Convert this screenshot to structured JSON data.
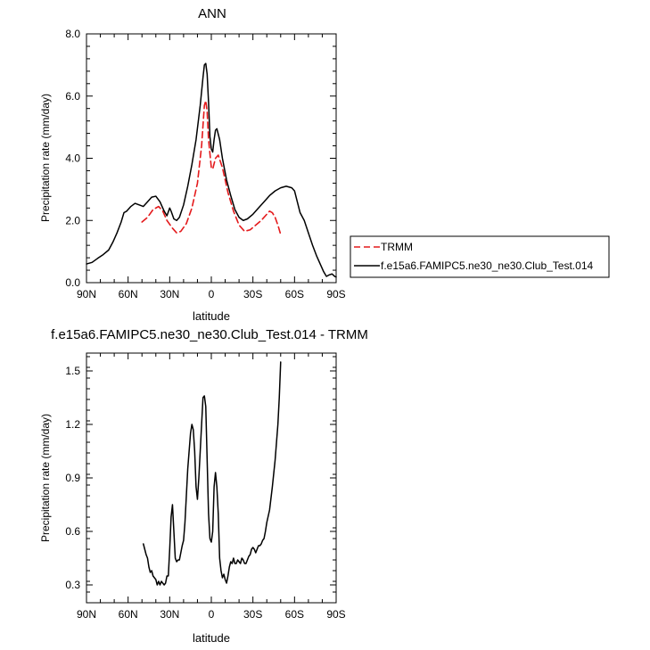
{
  "chart_data": [
    {
      "type": "line",
      "title": "ANN",
      "xlabel": "latitude",
      "ylabel": "Precipitation rate (mm/day)",
      "xlim": [
        -90,
        90
      ],
      "ylim": [
        0,
        8
      ],
      "x_direction": "north-to-south",
      "xticks": [
        -90,
        -60,
        -30,
        0,
        30,
        60,
        90
      ],
      "xtick_labels": [
        "90N",
        "60N",
        "30N",
        "0",
        "30S",
        "60S",
        "90S"
      ],
      "yticks": [
        0,
        2,
        4,
        6,
        8
      ],
      "ytick_labels": [
        "0.0",
        "2.0",
        "4.0",
        "6.0",
        "8.0"
      ],
      "grid": false,
      "legend_position": "right, outside plot",
      "series": [
        {
          "name": "TRMM",
          "color": "#e41a1c",
          "dash": "dashed",
          "points": [
            [
              -50,
              1.95
            ],
            [
              -46,
              2.1
            ],
            [
              -42,
              2.35
            ],
            [
              -38,
              2.45
            ],
            [
              -35,
              2.3
            ],
            [
              -32,
              2.0
            ],
            [
              -28,
              1.75
            ],
            [
              -25,
              1.6
            ],
            [
              -22,
              1.65
            ],
            [
              -18,
              1.9
            ],
            [
              -14,
              2.4
            ],
            [
              -10,
              3.2
            ],
            [
              -7,
              4.4
            ],
            [
              -5,
              5.7
            ],
            [
              -4,
              5.85
            ],
            [
              -3,
              5.5
            ],
            [
              -2,
              4.6
            ],
            [
              0,
              3.7
            ],
            [
              1,
              3.65
            ],
            [
              3,
              4.0
            ],
            [
              5,
              4.1
            ],
            [
              8,
              3.7
            ],
            [
              12,
              2.9
            ],
            [
              16,
              2.3
            ],
            [
              20,
              1.85
            ],
            [
              24,
              1.65
            ],
            [
              28,
              1.7
            ],
            [
              32,
              1.85
            ],
            [
              36,
              2.0
            ],
            [
              40,
              2.2
            ],
            [
              42,
              2.3
            ],
            [
              44,
              2.25
            ],
            [
              46,
              2.1
            ],
            [
              48,
              1.85
            ],
            [
              50,
              1.55
            ]
          ]
        },
        {
          "name": "f.e15a6.FAMIPC5.ne30_ne30.Club_Test.014",
          "color": "#000000",
          "dash": "solid",
          "points": [
            [
              -90,
              0.6
            ],
            [
              -86,
              0.65
            ],
            [
              -82,
              0.78
            ],
            [
              -78,
              0.9
            ],
            [
              -74,
              1.05
            ],
            [
              -71,
              1.3
            ],
            [
              -68,
              1.6
            ],
            [
              -65,
              1.95
            ],
            [
              -63,
              2.25
            ],
            [
              -61,
              2.3
            ],
            [
              -58,
              2.45
            ],
            [
              -55,
              2.55
            ],
            [
              -52,
              2.5
            ],
            [
              -49,
              2.45
            ],
            [
              -46,
              2.6
            ],
            [
              -43,
              2.75
            ],
            [
              -40,
              2.78
            ],
            [
              -37,
              2.6
            ],
            [
              -34,
              2.3
            ],
            [
              -32,
              2.15
            ],
            [
              -30,
              2.4
            ],
            [
              -29,
              2.3
            ],
            [
              -27,
              2.05
            ],
            [
              -25,
              2.0
            ],
            [
              -23,
              2.1
            ],
            [
              -20,
              2.5
            ],
            [
              -17,
              3.1
            ],
            [
              -14,
              3.8
            ],
            [
              -11,
              4.6
            ],
            [
              -8,
              5.7
            ],
            [
              -6,
              6.6
            ],
            [
              -5,
              7.0
            ],
            [
              -4,
              7.05
            ],
            [
              -3,
              6.7
            ],
            [
              -2,
              5.8
            ],
            [
              -1,
              4.7
            ],
            [
              0,
              4.3
            ],
            [
              1,
              4.2
            ],
            [
              2,
              4.6
            ],
            [
              3,
              4.9
            ],
            [
              4,
              4.95
            ],
            [
              6,
              4.6
            ],
            [
              8,
              4.0
            ],
            [
              11,
              3.3
            ],
            [
              14,
              2.8
            ],
            [
              17,
              2.35
            ],
            [
              20,
              2.1
            ],
            [
              23,
              2.0
            ],
            [
              26,
              2.05
            ],
            [
              30,
              2.2
            ],
            [
              34,
              2.4
            ],
            [
              38,
              2.6
            ],
            [
              42,
              2.8
            ],
            [
              46,
              2.95
            ],
            [
              50,
              3.05
            ],
            [
              54,
              3.1
            ],
            [
              58,
              3.05
            ],
            [
              60,
              2.95
            ],
            [
              62,
              2.6
            ],
            [
              64,
              2.25
            ],
            [
              67,
              2.0
            ],
            [
              70,
              1.6
            ],
            [
              73,
              1.2
            ],
            [
              76,
              0.85
            ],
            [
              79,
              0.55
            ],
            [
              81,
              0.35
            ],
            [
              83,
              0.2
            ],
            [
              85,
              0.25
            ],
            [
              87,
              0.28
            ],
            [
              89,
              0.2
            ],
            [
              90,
              0.18
            ]
          ]
        }
      ]
    },
    {
      "type": "line",
      "title": "f.e15a6.FAMIPC5.ne30_ne30.Club_Test.014 - TRMM",
      "xlabel": "latitude",
      "ylabel": "Precipitation rate (mm/day)",
      "xlim": [
        -90,
        90
      ],
      "ylim": [
        0.2,
        1.6
      ],
      "x_direction": "north-to-south",
      "xticks": [
        -90,
        -60,
        -30,
        0,
        30,
        60,
        90
      ],
      "xtick_labels": [
        "90N",
        "60N",
        "30N",
        "0",
        "30S",
        "60S",
        "90S"
      ],
      "yticks": [
        0.3,
        0.6,
        0.9,
        1.2,
        1.5
      ],
      "ytick_labels": [
        "0.3",
        "0.6",
        "0.9",
        "1.2",
        "1.5"
      ],
      "grid": false,
      "series": [
        {
          "name": "",
          "color": "#000000",
          "dash": "solid",
          "points": [
            [
              -49,
              0.53
            ],
            [
              -48,
              0.5
            ],
            [
              -47,
              0.47
            ],
            [
              -46,
              0.45
            ],
            [
              -45,
              0.4
            ],
            [
              -44,
              0.37
            ],
            [
              -43,
              0.38
            ],
            [
              -42,
              0.35
            ],
            [
              -41,
              0.34
            ],
            [
              -40,
              0.33
            ],
            [
              -39,
              0.3
            ],
            [
              -38,
              0.32
            ],
            [
              -37,
              0.3
            ],
            [
              -36,
              0.32
            ],
            [
              -35,
              0.31
            ],
            [
              -34,
              0.3
            ],
            [
              -33,
              0.31
            ],
            [
              -32,
              0.35
            ],
            [
              -31,
              0.35
            ],
            [
              -30,
              0.5
            ],
            [
              -29,
              0.68
            ],
            [
              -28,
              0.75
            ],
            [
              -27,
              0.6
            ],
            [
              -26,
              0.45
            ],
            [
              -25,
              0.43
            ],
            [
              -24,
              0.44
            ],
            [
              -23,
              0.44
            ],
            [
              -22,
              0.48
            ],
            [
              -21,
              0.52
            ],
            [
              -20,
              0.55
            ],
            [
              -19,
              0.65
            ],
            [
              -18,
              0.8
            ],
            [
              -17,
              0.95
            ],
            [
              -16,
              1.05
            ],
            [
              -15,
              1.15
            ],
            [
              -14,
              1.2
            ],
            [
              -13,
              1.17
            ],
            [
              -12,
              1.05
            ],
            [
              -11,
              0.85
            ],
            [
              -10,
              0.78
            ],
            [
              -9,
              0.9
            ],
            [
              -8,
              1.05
            ],
            [
              -7,
              1.2
            ],
            [
              -6,
              1.35
            ],
            [
              -5,
              1.36
            ],
            [
              -4,
              1.3
            ],
            [
              -3,
              1.0
            ],
            [
              -2,
              0.7
            ],
            [
              -1,
              0.56
            ],
            [
              0,
              0.54
            ],
            [
              1,
              0.6
            ],
            [
              2,
              0.85
            ],
            [
              3,
              0.93
            ],
            [
              4,
              0.85
            ],
            [
              5,
              0.7
            ],
            [
              6,
              0.45
            ],
            [
              7,
              0.38
            ],
            [
              8,
              0.34
            ],
            [
              9,
              0.36
            ],
            [
              10,
              0.33
            ],
            [
              11,
              0.31
            ],
            [
              12,
              0.35
            ],
            [
              13,
              0.4
            ],
            [
              14,
              0.43
            ],
            [
              15,
              0.42
            ],
            [
              16,
              0.45
            ],
            [
              17,
              0.42
            ],
            [
              18,
              0.42
            ],
            [
              19,
              0.44
            ],
            [
              20,
              0.43
            ],
            [
              21,
              0.42
            ],
            [
              22,
              0.45
            ],
            [
              23,
              0.44
            ],
            [
              24,
              0.42
            ],
            [
              25,
              0.42
            ],
            [
              26,
              0.44
            ],
            [
              27,
              0.46
            ],
            [
              28,
              0.47
            ],
            [
              29,
              0.5
            ],
            [
              30,
              0.51
            ],
            [
              31,
              0.5
            ],
            [
              32,
              0.48
            ],
            [
              33,
              0.5
            ],
            [
              34,
              0.52
            ],
            [
              35,
              0.52
            ],
            [
              36,
              0.53
            ],
            [
              37,
              0.55
            ],
            [
              38,
              0.56
            ],
            [
              39,
              0.6
            ],
            [
              40,
              0.65
            ],
            [
              42,
              0.72
            ],
            [
              44,
              0.85
            ],
            [
              46,
              1.0
            ],
            [
              48,
              1.2
            ],
            [
              49,
              1.35
            ],
            [
              50,
              1.55
            ]
          ]
        }
      ]
    }
  ]
}
